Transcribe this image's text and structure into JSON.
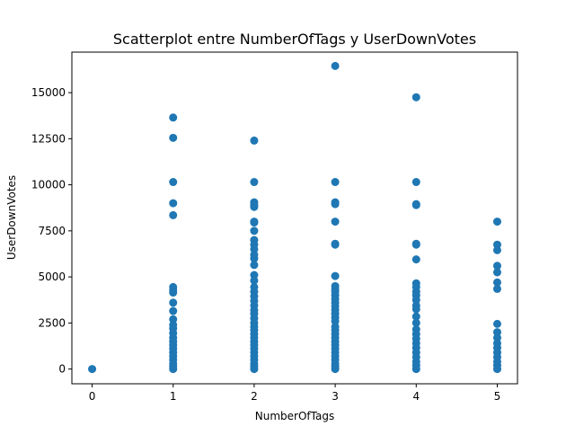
{
  "chart_data": {
    "type": "scatter",
    "title": "Scatterplot entre NumberOfTags y UserDownVotes",
    "xlabel": "NumberOfTags",
    "ylabel": "UserDownVotes",
    "xlim": [
      -0.25,
      5.25
    ],
    "ylim": [
      -800,
      17200
    ],
    "xticks": [
      0,
      1,
      2,
      3,
      4,
      5
    ],
    "xtick_labels": [
      "0",
      "1",
      "2",
      "3",
      "4",
      "5"
    ],
    "yticks": [
      0,
      2500,
      5000,
      7500,
      10000,
      12500,
      15000
    ],
    "ytick_labels": [
      "0",
      "2500",
      "5000",
      "7500",
      "10000",
      "12500",
      "15000"
    ],
    "grid": false,
    "marker_color": "#1f77b4",
    "series": [
      {
        "points": [
          [
            0,
            0
          ],
          [
            1,
            13650
          ],
          [
            1,
            12550
          ],
          [
            1,
            10150
          ],
          [
            1,
            9000
          ],
          [
            1,
            8350
          ],
          [
            1,
            4450
          ],
          [
            1,
            4300
          ],
          [
            1,
            4150
          ],
          [
            1,
            3600
          ],
          [
            1,
            3150
          ],
          [
            1,
            2700
          ],
          [
            1,
            2400
          ],
          [
            1,
            2200
          ],
          [
            1,
            1950
          ],
          [
            1,
            1700
          ],
          [
            1,
            1500
          ],
          [
            1,
            1300
          ],
          [
            1,
            1100
          ],
          [
            1,
            900
          ],
          [
            1,
            700
          ],
          [
            1,
            500
          ],
          [
            1,
            300
          ],
          [
            1,
            150
          ],
          [
            1,
            0
          ],
          [
            2,
            12400
          ],
          [
            2,
            10150
          ],
          [
            2,
            9050
          ],
          [
            2,
            8900
          ],
          [
            2,
            8800
          ],
          [
            2,
            8000
          ],
          [
            2,
            7950
          ],
          [
            2,
            7500
          ],
          [
            2,
            7000
          ],
          [
            2,
            6750
          ],
          [
            2,
            6500
          ],
          [
            2,
            6200
          ],
          [
            2,
            6000
          ],
          [
            2,
            5650
          ],
          [
            2,
            5100
          ],
          [
            2,
            4800
          ],
          [
            2,
            4450
          ],
          [
            2,
            4200
          ],
          [
            2,
            3950
          ],
          [
            2,
            3700
          ],
          [
            2,
            3450
          ],
          [
            2,
            3200
          ],
          [
            2,
            3000
          ],
          [
            2,
            2750
          ],
          [
            2,
            2500
          ],
          [
            2,
            2300
          ],
          [
            2,
            2100
          ],
          [
            2,
            1900
          ],
          [
            2,
            1700
          ],
          [
            2,
            1500
          ],
          [
            2,
            1300
          ],
          [
            2,
            1100
          ],
          [
            2,
            900
          ],
          [
            2,
            700
          ],
          [
            2,
            500
          ],
          [
            2,
            300
          ],
          [
            2,
            150
          ],
          [
            2,
            0
          ],
          [
            3,
            16450
          ],
          [
            3,
            10150
          ],
          [
            3,
            9050
          ],
          [
            3,
            8950
          ],
          [
            3,
            8000
          ],
          [
            3,
            6800
          ],
          [
            3,
            6750
          ],
          [
            3,
            5050
          ],
          [
            3,
            4500
          ],
          [
            3,
            4350
          ],
          [
            3,
            4200
          ],
          [
            3,
            4000
          ],
          [
            3,
            3800
          ],
          [
            3,
            3600
          ],
          [
            3,
            3400
          ],
          [
            3,
            3200
          ],
          [
            3,
            3000
          ],
          [
            3,
            2800
          ],
          [
            3,
            2600
          ],
          [
            3,
            2300
          ],
          [
            3,
            2100
          ],
          [
            3,
            1900
          ],
          [
            3,
            1700
          ],
          [
            3,
            1500
          ],
          [
            3,
            1300
          ],
          [
            3,
            1100
          ],
          [
            3,
            900
          ],
          [
            3,
            700
          ],
          [
            3,
            500
          ],
          [
            3,
            300
          ],
          [
            3,
            150
          ],
          [
            3,
            0
          ],
          [
            4,
            14750
          ],
          [
            4,
            10150
          ],
          [
            4,
            8950
          ],
          [
            4,
            8900
          ],
          [
            4,
            6800
          ],
          [
            4,
            6750
          ],
          [
            4,
            5950
          ],
          [
            4,
            4650
          ],
          [
            4,
            4450
          ],
          [
            4,
            4200
          ],
          [
            4,
            4000
          ],
          [
            4,
            3750
          ],
          [
            4,
            3450
          ],
          [
            4,
            3250
          ],
          [
            4,
            2850
          ],
          [
            4,
            2500
          ],
          [
            4,
            2150
          ],
          [
            4,
            1900
          ],
          [
            4,
            1650
          ],
          [
            4,
            1400
          ],
          [
            4,
            1150
          ],
          [
            4,
            900
          ],
          [
            4,
            650
          ],
          [
            4,
            400
          ],
          [
            4,
            200
          ],
          [
            4,
            0
          ],
          [
            5,
            8000
          ],
          [
            5,
            6750
          ],
          [
            5,
            6450
          ],
          [
            5,
            5600
          ],
          [
            5,
            5250
          ],
          [
            5,
            4700
          ],
          [
            5,
            4350
          ],
          [
            5,
            2450
          ],
          [
            5,
            2000
          ],
          [
            5,
            1700
          ],
          [
            5,
            1400
          ],
          [
            5,
            1150
          ],
          [
            5,
            900
          ],
          [
            5,
            650
          ],
          [
            5,
            400
          ],
          [
            5,
            200
          ],
          [
            5,
            0
          ]
        ]
      }
    ]
  }
}
